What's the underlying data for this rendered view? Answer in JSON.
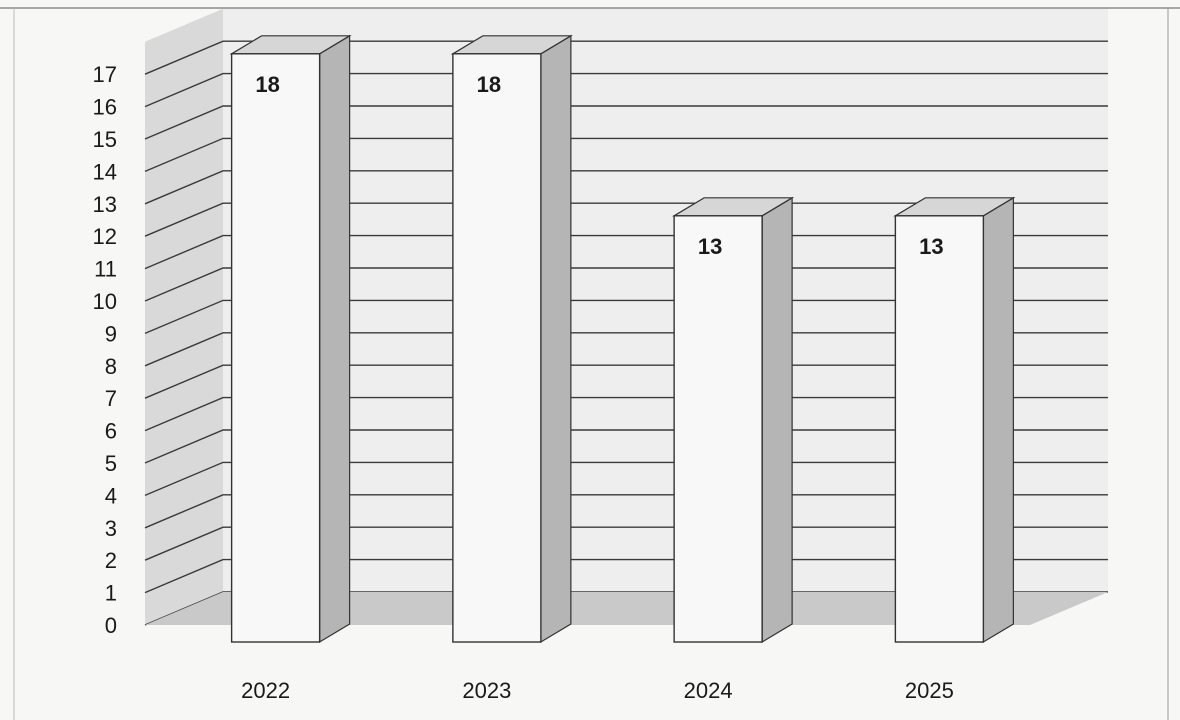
{
  "chart_data": {
    "type": "bar",
    "style": "3d-column",
    "categories": [
      "2022",
      "2023",
      "2024",
      "2025"
    ],
    "values": [
      18,
      18,
      13,
      13
    ],
    "data_labels": [
      "18",
      "18",
      "13",
      "13"
    ],
    "y_ticks": [
      "0",
      "1",
      "2",
      "3",
      "4",
      "5",
      "6",
      "7",
      "8",
      "9",
      "10",
      "11",
      "12",
      "13",
      "14",
      "15",
      "16",
      "17"
    ],
    "ylim": [
      0,
      18
    ],
    "grid": true,
    "legend": "none",
    "title": "",
    "xlabel": "",
    "ylabel": ""
  },
  "colors": {
    "bar_front": "#f8f8f8",
    "bar_side": "#b5b5b5",
    "bar_top": "#d6d6d6",
    "back_wall": "#eeeeee",
    "floor": "#c9c9c9",
    "side_wall": "#d9d9d9",
    "gridline": "#3a3a3a",
    "text": "#1a1a1a"
  }
}
